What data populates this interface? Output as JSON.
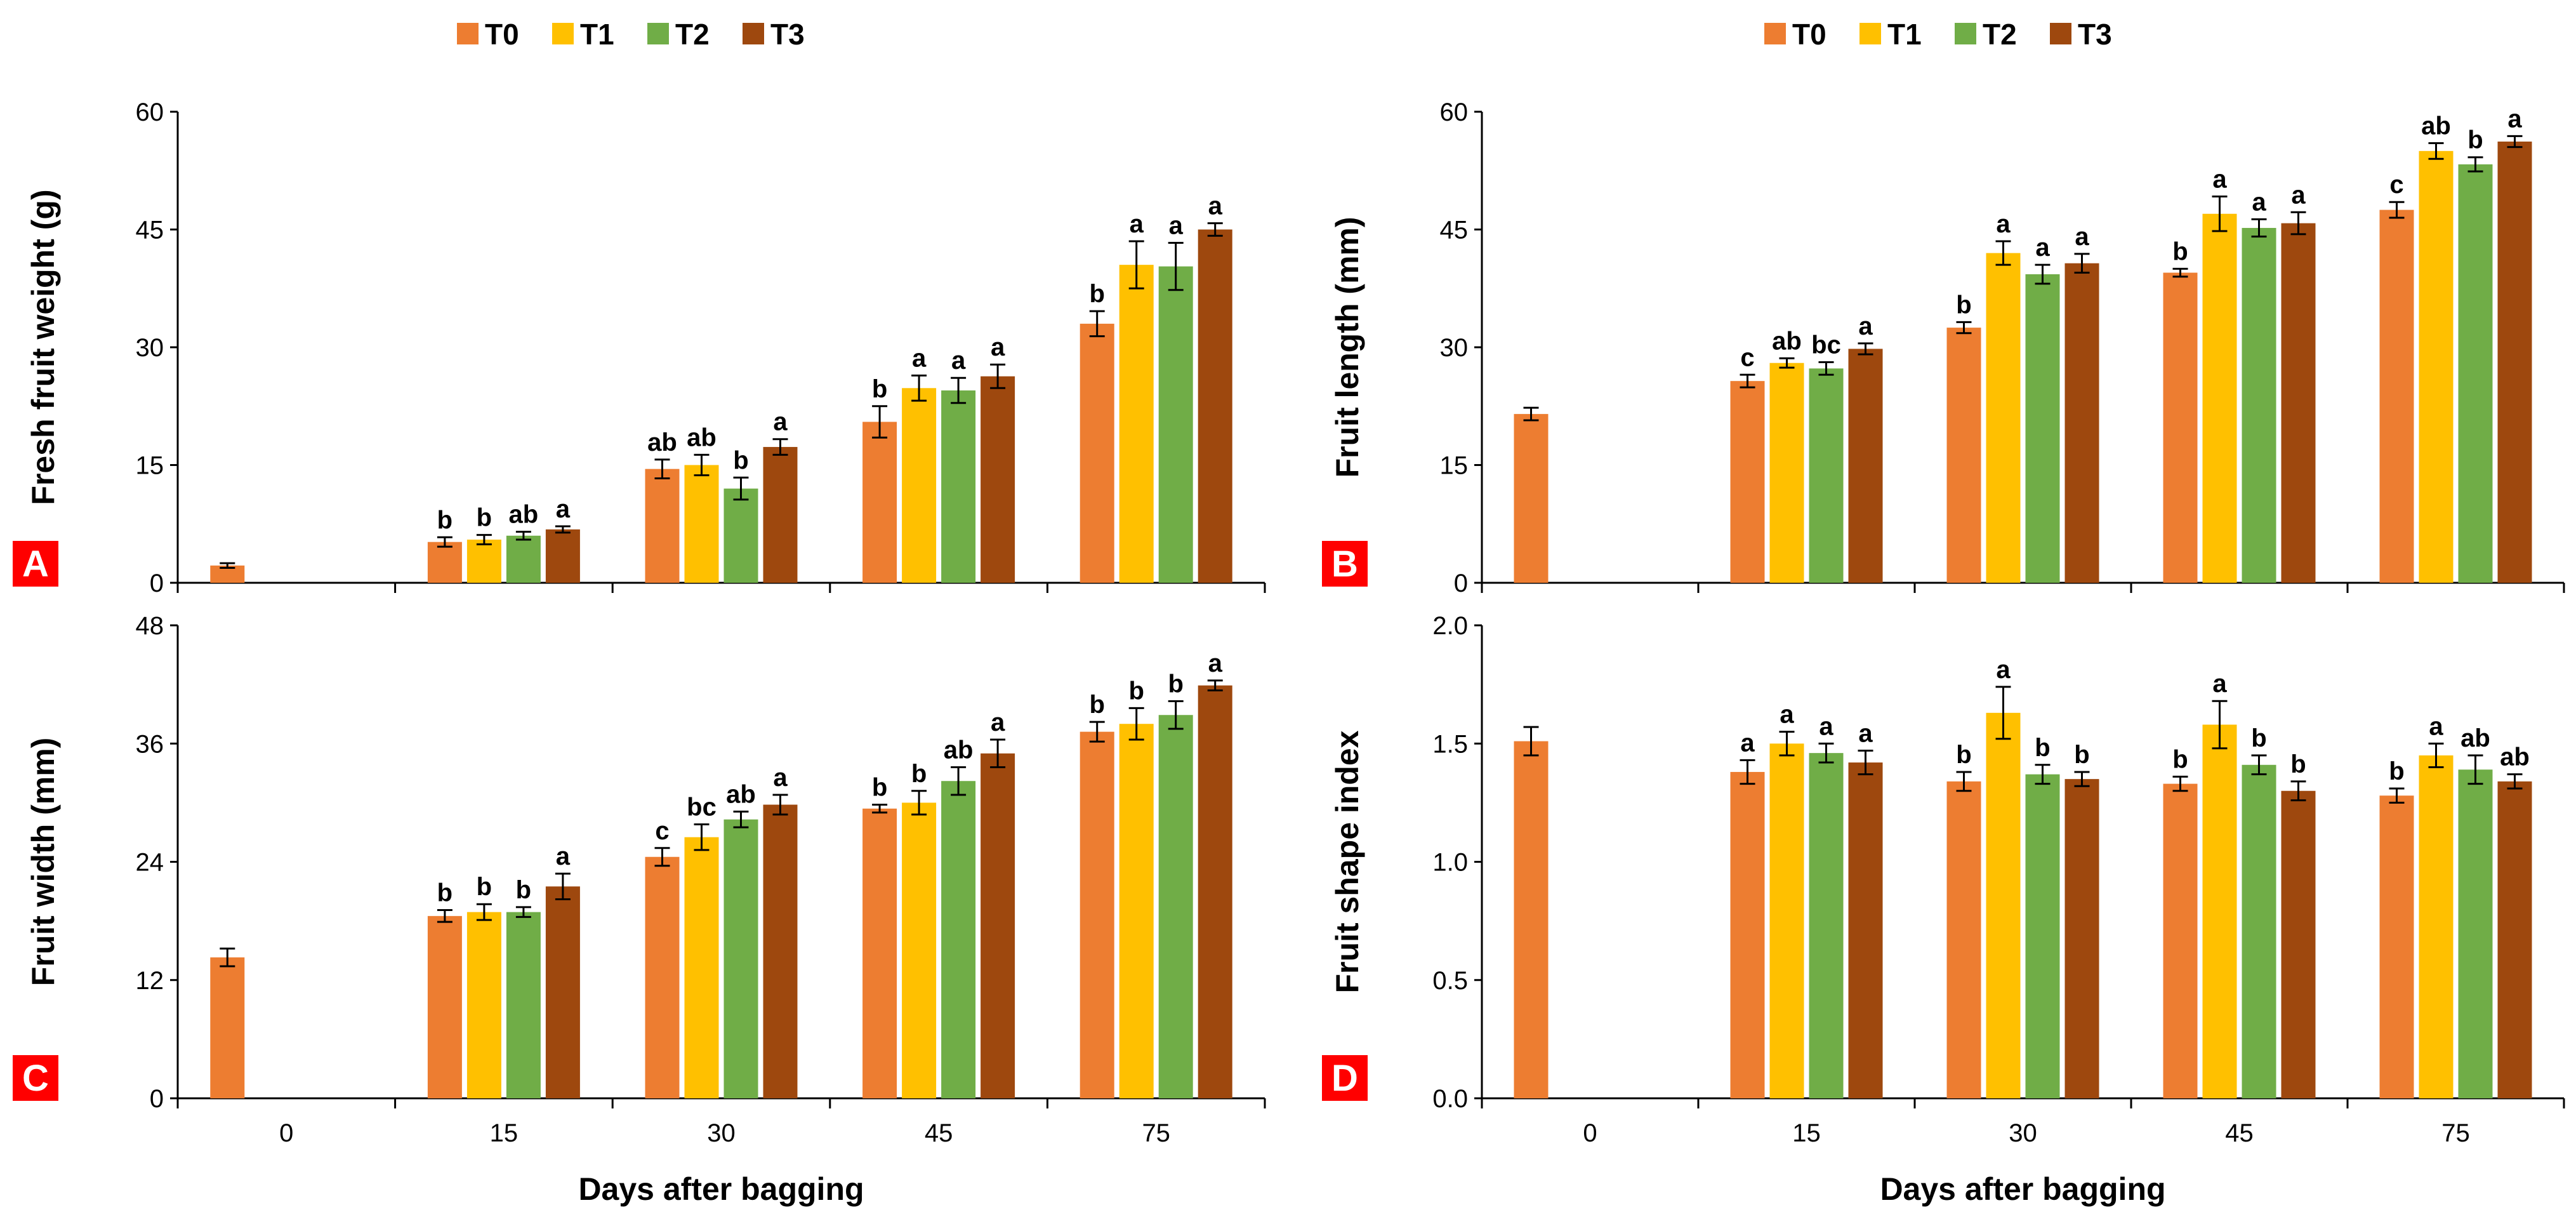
{
  "figure": {
    "xlabel": "Days after bagging",
    "legend": {
      "placement": "top-center",
      "entries": [
        {
          "name": "T0",
          "color": "#ED7D31"
        },
        {
          "name": "T1",
          "color": "#FFC000"
        },
        {
          "name": "T2",
          "color": "#70AD47"
        },
        {
          "name": "T3",
          "color": "#9E480E"
        }
      ]
    },
    "panel_label_color": "#FF0000"
  },
  "chart_data": [
    {
      "panel": "A",
      "type": "bar",
      "xlabel": "Days after bagging",
      "ylabel": "Fresh fruit weight (g)",
      "ylim": [
        0,
        60
      ],
      "yticks": [
        0,
        15,
        30,
        45,
        60
      ],
      "categories": [
        "0",
        "15",
        "30",
        "45",
        "75"
      ],
      "series": [
        {
          "name": "T0",
          "values": [
            2.2,
            5.2,
            14.5,
            20.5,
            33.0
          ],
          "errors": [
            0.3,
            0.6,
            1.2,
            2.0,
            1.6
          ],
          "letters": [
            "",
            "b",
            "ab",
            "b",
            "b"
          ]
        },
        {
          "name": "T1",
          "values": [
            null,
            5.5,
            15.0,
            24.8,
            40.5
          ],
          "errors": [
            null,
            0.6,
            1.3,
            1.6,
            3.0
          ],
          "letters": [
            "",
            "b",
            "ab",
            "a",
            "a"
          ]
        },
        {
          "name": "T2",
          "values": [
            null,
            6.0,
            12.0,
            24.5,
            40.3
          ],
          "errors": [
            null,
            0.5,
            1.4,
            1.6,
            3.0
          ],
          "letters": [
            "",
            "ab",
            "b",
            "a",
            "a"
          ]
        },
        {
          "name": "T3",
          "values": [
            null,
            6.8,
            17.3,
            26.3,
            45.0
          ],
          "errors": [
            null,
            0.4,
            1.0,
            1.5,
            0.8
          ],
          "letters": [
            "",
            "a",
            "a",
            "a",
            "a"
          ]
        }
      ]
    },
    {
      "panel": "B",
      "type": "bar",
      "xlabel": "Days after bagging",
      "ylabel": "Fruit length (mm)",
      "ylim": [
        0,
        60
      ],
      "yticks": [
        0,
        15,
        30,
        45,
        60
      ],
      "categories": [
        "0",
        "15",
        "30",
        "45",
        "75"
      ],
      "series": [
        {
          "name": "T0",
          "values": [
            21.5,
            25.7,
            32.5,
            39.5,
            47.5
          ],
          "errors": [
            0.8,
            0.8,
            0.7,
            0.5,
            1.0
          ],
          "letters": [
            "",
            "c",
            "b",
            "b",
            "c"
          ]
        },
        {
          "name": "T1",
          "values": [
            null,
            28.0,
            42.0,
            47.0,
            55.0
          ],
          "errors": [
            null,
            0.6,
            1.5,
            2.2,
            1.0
          ],
          "letters": [
            "",
            "ab",
            "a",
            "a",
            "ab"
          ]
        },
        {
          "name": "T2",
          "values": [
            null,
            27.3,
            39.3,
            45.2,
            53.3
          ],
          "errors": [
            null,
            0.8,
            1.2,
            1.1,
            0.9
          ],
          "letters": [
            "",
            "bc",
            "a",
            "a",
            "b"
          ]
        },
        {
          "name": "T3",
          "values": [
            null,
            29.8,
            40.7,
            45.8,
            56.2
          ],
          "errors": [
            null,
            0.7,
            1.2,
            1.4,
            0.7
          ],
          "letters": [
            "",
            "a",
            "a",
            "a",
            "a"
          ]
        }
      ]
    },
    {
      "panel": "C",
      "type": "bar",
      "xlabel": "Days after bagging",
      "ylabel": "Fruit width (mm)",
      "ylim": [
        0,
        48
      ],
      "yticks": [
        0,
        12,
        24,
        36,
        48
      ],
      "categories": [
        "0",
        "15",
        "30",
        "45",
        "75"
      ],
      "series": [
        {
          "name": "T0",
          "values": [
            14.3,
            18.5,
            24.5,
            29.4,
            37.2
          ],
          "errors": [
            0.9,
            0.6,
            0.9,
            0.4,
            1.0
          ],
          "letters": [
            "",
            "b",
            "c",
            "b",
            "b"
          ]
        },
        {
          "name": "T1",
          "values": [
            null,
            18.9,
            26.5,
            30.0,
            38.0
          ],
          "errors": [
            null,
            0.8,
            1.3,
            1.2,
            1.6
          ],
          "letters": [
            "",
            "b",
            "bc",
            "b",
            "b"
          ]
        },
        {
          "name": "T2",
          "values": [
            null,
            18.9,
            28.3,
            32.2,
            38.9
          ],
          "errors": [
            null,
            0.5,
            0.8,
            1.4,
            1.4
          ],
          "letters": [
            "",
            "b",
            "ab",
            "ab",
            "b"
          ]
        },
        {
          "name": "T3",
          "values": [
            null,
            21.5,
            29.8,
            35.0,
            41.9
          ],
          "errors": [
            null,
            1.3,
            1.0,
            1.4,
            0.5
          ],
          "letters": [
            "",
            "a",
            "a",
            "a",
            "a"
          ]
        }
      ]
    },
    {
      "panel": "D",
      "type": "bar",
      "xlabel": "Days after bagging",
      "ylabel": "Fruit shape index",
      "ylim": [
        0,
        2
      ],
      "yticks": [
        "0.0",
        "0.5",
        "1.0",
        "1.5",
        "2.0"
      ],
      "categories": [
        "0",
        "15",
        "30",
        "45",
        "75"
      ],
      "series": [
        {
          "name": "T0",
          "values": [
            1.51,
            1.38,
            1.34,
            1.33,
            1.28
          ],
          "errors": [
            0.06,
            0.05,
            0.04,
            0.03,
            0.03
          ],
          "letters": [
            "",
            "a",
            "b",
            "b",
            "b"
          ]
        },
        {
          "name": "T1",
          "values": [
            null,
            1.5,
            1.63,
            1.58,
            1.45
          ],
          "errors": [
            null,
            0.05,
            0.11,
            0.1,
            0.05
          ],
          "letters": [
            "",
            "a",
            "a",
            "a",
            "a"
          ]
        },
        {
          "name": "T2",
          "values": [
            null,
            1.46,
            1.37,
            1.41,
            1.39
          ],
          "errors": [
            null,
            0.04,
            0.04,
            0.04,
            0.06
          ],
          "letters": [
            "",
            "a",
            "b",
            "b",
            "ab"
          ]
        },
        {
          "name": "T3",
          "values": [
            null,
            1.42,
            1.35,
            1.3,
            1.34
          ],
          "errors": [
            null,
            0.05,
            0.03,
            0.04,
            0.03
          ],
          "letters": [
            "",
            "a",
            "b",
            "b",
            "ab"
          ]
        }
      ]
    }
  ]
}
